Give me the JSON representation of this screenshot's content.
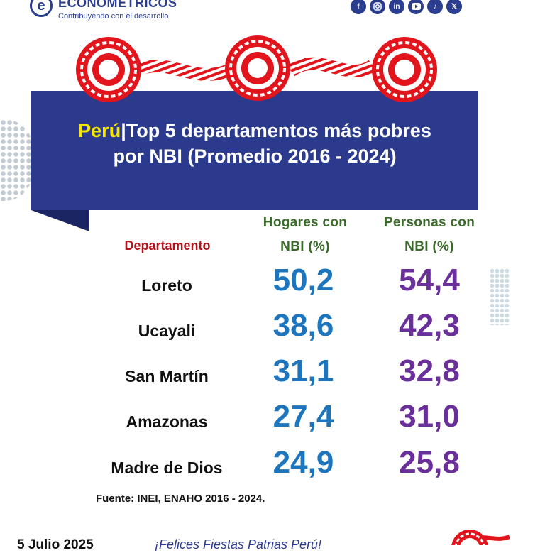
{
  "header": {
    "logo_letter": "e",
    "brand": "ECONOMÉTRICOS",
    "tagline": "Contribuyendo con el desarrollo",
    "social_icons": [
      "facebook-icon",
      "instagram-icon",
      "linkedin-icon",
      "youtube-icon",
      "tiktok-icon",
      "x-icon"
    ]
  },
  "title": {
    "highlight": "Perú",
    "line1_rest": "|Top 5 departamentos más pobres",
    "line2": "por NBI (Promedio 2016 - 2024)"
  },
  "table": {
    "departamento_header": "Departamento",
    "hogares_header": [
      "Hogares con",
      "NBI (%)"
    ],
    "personas_header": [
      "Personas con",
      "NBI (%)"
    ],
    "rows": [
      {
        "name": "Loreto",
        "hogares": "50,2",
        "personas": "54,4"
      },
      {
        "name": "Ucayali",
        "hogares": "38,6",
        "personas": "42,3"
      },
      {
        "name": "San Martín",
        "hogares": "31,1",
        "personas": "32,8"
      },
      {
        "name": "Amazonas",
        "hogares": "27,4",
        "personas": "31,0"
      },
      {
        "name": "Madre de Dios",
        "hogares": "24,9",
        "personas": "25,8"
      }
    ]
  },
  "chart_data": {
    "type": "table",
    "title": "Perú|Top 5 departamentos más pobres por NBI (Promedio 2016 - 2024)",
    "columns": [
      "Departamento",
      "Hogares con NBI (%)",
      "Personas con NBI (%)"
    ],
    "categories": [
      "Loreto",
      "Ucayali",
      "San Martín",
      "Amazonas",
      "Madre de Dios"
    ],
    "series": [
      {
        "name": "Hogares con NBI (%)",
        "values": [
          50.2,
          38.6,
          31.1,
          27.4,
          24.9
        ]
      },
      {
        "name": "Personas con NBI (%)",
        "values": [
          54.4,
          42.3,
          32.8,
          31.0,
          25.8
        ]
      }
    ]
  },
  "footer": {
    "source": "Fuente: INEI, ENAHO 2016 - 2024.",
    "date": "5 Julio 2025",
    "greeting": "¡Felices Fiestas Patrias Perú!"
  },
  "colors": {
    "banner": "#2b3a8c",
    "highlight": "#f7e600",
    "hogares": "#1d75bd",
    "personas": "#6a2f9b",
    "departamento_header": "#b3121a",
    "column_header": "#3b6b2a",
    "rosette_red": "#e2141c"
  }
}
